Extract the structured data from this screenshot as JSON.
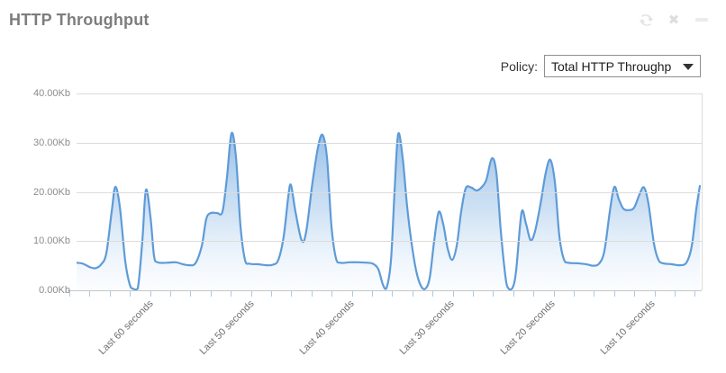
{
  "widget": {
    "title": "HTTP Throughput",
    "icons": {
      "refresh": "refresh-icon",
      "close": "close-icon",
      "minimize": "minimize-icon"
    },
    "close_glyph": "✖"
  },
  "policy": {
    "label": "Policy:",
    "selected_value": "Total HTTP Throughp"
  },
  "colors": {
    "line": "#5e9bd7",
    "fill_top": "rgba(144,186,230,0.92)",
    "fill_mid": "rgba(176,207,238,0.6)",
    "fill_bottom": "rgba(240,247,253,0.28)",
    "gridline": "#dcdcdc",
    "axis_baseline": "#c6c6c6",
    "tick": "#abc9e6",
    "icon_gray": "#e3e3e3"
  },
  "chart_data": {
    "type": "area",
    "title": "HTTP Throughput",
    "unit": "Kb",
    "ylim": [
      0,
      40
    ],
    "y_tick_labels": [
      "40.00Kb",
      "30.00Kb",
      "20.00Kb",
      "10.00Kb",
      "0.00Kb"
    ],
    "x_labels": [
      "Last 60 seconds",
      "Last 50 seconds",
      "Last 40 seconds",
      "Last 30 seconds",
      "Last 20 seconds",
      "Last 10 seconds"
    ],
    "grid": "horizontal-only",
    "legend": "none",
    "points": [
      [
        0,
        5.6
      ],
      [
        7,
        5.4
      ],
      [
        15,
        4.7
      ],
      [
        21,
        4.5
      ],
      [
        27,
        5.2
      ],
      [
        33,
        7.5
      ],
      [
        39,
        16
      ],
      [
        43,
        21.0
      ],
      [
        48,
        17
      ],
      [
        54,
        6
      ],
      [
        59,
        1.2
      ],
      [
        63,
        0.3
      ],
      [
        68,
        0.4
      ],
      [
        73,
        10
      ],
      [
        77,
        20.4
      ],
      [
        82,
        15
      ],
      [
        86,
        7
      ],
      [
        90,
        5.7
      ],
      [
        100,
        5.6
      ],
      [
        110,
        5.7
      ],
      [
        118,
        5.3
      ],
      [
        125,
        5.1
      ],
      [
        132,
        5.5
      ],
      [
        139,
        9
      ],
      [
        144,
        14.5
      ],
      [
        149,
        15.7
      ],
      [
        156,
        15.7
      ],
      [
        162,
        16.0
      ],
      [
        167,
        23
      ],
      [
        172,
        31.9
      ],
      [
        177,
        27
      ],
      [
        182,
        13
      ],
      [
        187,
        6.2
      ],
      [
        192,
        5.4
      ],
      [
        202,
        5.3
      ],
      [
        211,
        5.1
      ],
      [
        218,
        5.2
      ],
      [
        224,
        6.2
      ],
      [
        230,
        11
      ],
      [
        235,
        19
      ],
      [
        238,
        21.4
      ],
      [
        243,
        16
      ],
      [
        250,
        10.1
      ],
      [
        255,
        12
      ],
      [
        262,
        22
      ],
      [
        268,
        29
      ],
      [
        273,
        31.6
      ],
      [
        278,
        27
      ],
      [
        283,
        13
      ],
      [
        288,
        6.5
      ],
      [
        293,
        5.6
      ],
      [
        303,
        5.7
      ],
      [
        313,
        5.7
      ],
      [
        323,
        5.6
      ],
      [
        329,
        5.4
      ],
      [
        335,
        4.3
      ],
      [
        340,
        1.2
      ],
      [
        344,
        0.4
      ],
      [
        349,
        6
      ],
      [
        353,
        20
      ],
      [
        357,
        31.7
      ],
      [
        362,
        27
      ],
      [
        367,
        17
      ],
      [
        372,
        9.5
      ],
      [
        377,
        4
      ],
      [
        382,
        1
      ],
      [
        387,
        0.3
      ],
      [
        392,
        2.5
      ],
      [
        397,
        10
      ],
      [
        402,
        15.9
      ],
      [
        407,
        13.5
      ],
      [
        412,
        8.5
      ],
      [
        417,
        6.2
      ],
      [
        422,
        9
      ],
      [
        427,
        16
      ],
      [
        432,
        20.7
      ],
      [
        438,
        20.9
      ],
      [
        444,
        20.3
      ],
      [
        450,
        21.0
      ],
      [
        455,
        22.5
      ],
      [
        461,
        26.8
      ],
      [
        466,
        24
      ],
      [
        471,
        12
      ],
      [
        476,
        3
      ],
      [
        479,
        0.5
      ],
      [
        484,
        0.5
      ],
      [
        488,
        4
      ],
      [
        494,
        15.8
      ],
      [
        499,
        13.5
      ],
      [
        504,
        10.2
      ],
      [
        509,
        12
      ],
      [
        515,
        17.5
      ],
      [
        521,
        24
      ],
      [
        526,
        26.5
      ],
      [
        531,
        22
      ],
      [
        536,
        11
      ],
      [
        541,
        6.3
      ],
      [
        546,
        5.6
      ],
      [
        556,
        5.5
      ],
      [
        566,
        5.3
      ],
      [
        573,
        5.0
      ],
      [
        580,
        5.4
      ],
      [
        586,
        8
      ],
      [
        592,
        16
      ],
      [
        597,
        21.0
      ],
      [
        602,
        18.5
      ],
      [
        607,
        16.6
      ],
      [
        613,
        16.3
      ],
      [
        619,
        16.8
      ],
      [
        625,
        19.5
      ],
      [
        630,
        20.9
      ],
      [
        635,
        17.5
      ],
      [
        641,
        9.5
      ],
      [
        646,
        6.2
      ],
      [
        651,
        5.5
      ],
      [
        661,
        5.3
      ],
      [
        669,
        5.1
      ],
      [
        677,
        5.6
      ],
      [
        683,
        9
      ],
      [
        688,
        16.5
      ],
      [
        692,
        21.2
      ]
    ]
  }
}
